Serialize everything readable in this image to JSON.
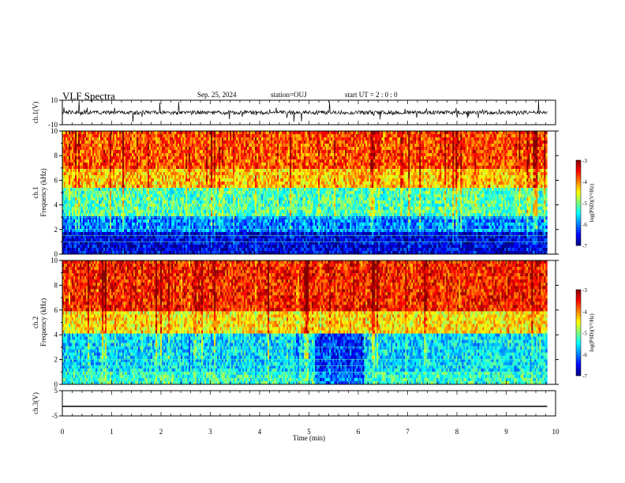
{
  "header": {
    "title": "VLF Spectra",
    "date": "Sep. 25, 2024",
    "station": "station=OUJ",
    "start_ut": "start UT =  2 : 0 : 0"
  },
  "chart_data": [
    {
      "type": "line",
      "panel": "ch1-waveform",
      "ylabel": "ch.1(V)",
      "ylim": [
        -10,
        10
      ],
      "yticks": [
        "10",
        "-10"
      ],
      "x": [
        0,
        9.83
      ],
      "series": [
        {
          "values": [
            0,
            0
          ]
        }
      ],
      "xlim": [
        0,
        10
      ]
    },
    {
      "type": "heatmap",
      "panel": "ch1-spectrogram",
      "ylabel": "ch.1 Frequency (kHz)",
      "ylim": [
        0,
        10
      ],
      "yticks": [
        "0",
        "2",
        "4",
        "6",
        "8",
        "10"
      ],
      "xlim": [
        0,
        10
      ],
      "data_end_min": 9.83,
      "colorbar": {
        "label": "log(PSD)(V²/Hz)",
        "range": [
          -7,
          -3
        ],
        "ticks": [
          "-3",
          "-4",
          "-5",
          "-6",
          "-7"
        ]
      },
      "description_bands_log_psd": [
        {
          "freq_khz": [
            0,
            1.8
          ],
          "level": -6.6
        },
        {
          "freq_khz": [
            1.8,
            3.2
          ],
          "level": -6.0
        },
        {
          "freq_khz": [
            3.2,
            5.5
          ],
          "level": -5.2
        },
        {
          "freq_khz": [
            5.5,
            7.0
          ],
          "level": -4.3
        },
        {
          "freq_khz": [
            7.0,
            10
          ],
          "level": -3.8
        }
      ]
    },
    {
      "type": "heatmap",
      "panel": "ch2-spectrogram",
      "ylabel": "ch.2 Frequency (kHz)",
      "ylim": [
        0,
        10
      ],
      "yticks": [
        "0",
        "2",
        "4",
        "6",
        "8",
        "10"
      ],
      "xlim": [
        0,
        10
      ],
      "data_end_min": 9.83,
      "colorbar": {
        "label": "log(PSD)(V²/Hz)",
        "range": [
          -7,
          -3
        ],
        "ticks": [
          "-3",
          "-4",
          "-5",
          "-6",
          "-7"
        ]
      },
      "description_bands_log_psd": [
        {
          "freq_khz": [
            0,
            1.0
          ],
          "level": -5.3
        },
        {
          "freq_khz": [
            1.0,
            4.0
          ],
          "level": -5.6
        },
        {
          "freq_khz": [
            4.0,
            6.0
          ],
          "level": -4.4
        },
        {
          "freq_khz": [
            6.0,
            10
          ],
          "level": -3.6
        }
      ]
    },
    {
      "type": "line",
      "panel": "ch3-waveform",
      "ylabel": "ch.3(V)",
      "ylim": [
        -5,
        5
      ],
      "yticks": [
        "5",
        "-5"
      ],
      "x": [
        0,
        9.83
      ],
      "series": [
        {
          "values": [
            -1.2,
            -1.2
          ]
        }
      ],
      "xlim": [
        0,
        10
      ],
      "xlabel": "Time (min)",
      "xticks": [
        "0",
        "1",
        "2",
        "3",
        "4",
        "5",
        "6",
        "7",
        "8",
        "9",
        "10"
      ]
    }
  ],
  "colors": {
    "jet_low": "#00007f",
    "jet_high": "#7f0000",
    "trace": "#000000"
  }
}
